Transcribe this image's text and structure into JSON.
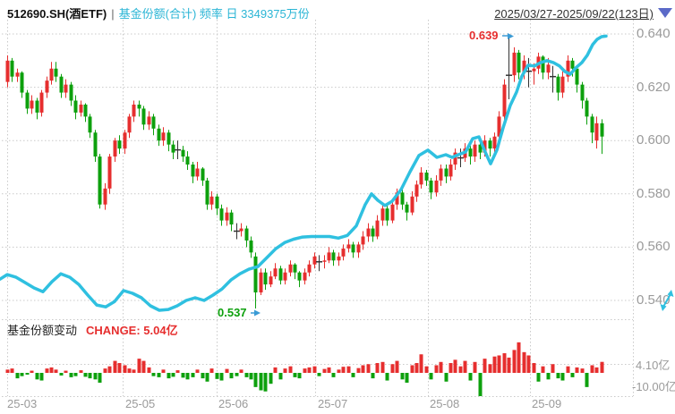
{
  "header": {
    "symbol": "512690.SH(酒ETF)",
    "separator": "|",
    "series_info": "基金份额(合计) 频率 日 3349375万份",
    "date_range": "2025/03/27-2025/09/22(123日)",
    "dropdown_icon": "triangle-down"
  },
  "main_chart": {
    "y_axis_labels": [
      "0.640",
      "0.620",
      "0.600",
      "0.580",
      "0.560",
      "0.540"
    ],
    "high_annotation": "0.639",
    "low_annotation": "0.537",
    "expand_icon": "expand-diagonal"
  },
  "bottom_panel": {
    "title": "基金份额变动",
    "change_text": "CHANGE: 5.04亿",
    "y_axis_labels": [
      "4.10亿",
      "-10.00亿"
    ]
  },
  "x_axis": {
    "labels": [
      "25-03",
      "25-05",
      "25-06",
      "25-07",
      "25-08",
      "25-09"
    ]
  },
  "colors": {
    "up": "#e62e2e",
    "down": "#0da00d",
    "doji": "#333333",
    "line": "#2fc0e0",
    "grid": "#c9c9c9",
    "axis_text": "#9a9a9a",
    "annotation_arrow": "#3a9bd5",
    "header_accent": "#2ab5d5",
    "dropdown": "#5b6ac8"
  },
  "chart_data": [
    {
      "type": "candlestick",
      "title": "512690.SH(酒ETF) 日K",
      "date_range": "2025/03/27-2025/09/22",
      "days": 123,
      "ylim": [
        0.533,
        0.643
      ],
      "y_ticks": [
        0.64,
        0.62,
        0.6,
        0.58,
        0.56,
        0.54
      ],
      "x_tick_labels": [
        "25-03",
        "25-05",
        "25-06",
        "25-07",
        "25-08",
        "25-09"
      ],
      "period_high": 0.639,
      "period_low": 0.537,
      "ohlc": [
        [
          0.622,
          0.632,
          0.62,
          0.63
        ],
        [
          0.63,
          0.631,
          0.622,
          0.624
        ],
        [
          0.624,
          0.627,
          0.622,
          0.6255
        ],
        [
          0.6255,
          0.626,
          0.616,
          0.618
        ],
        [
          0.618,
          0.619,
          0.61,
          0.612
        ],
        [
          0.612,
          0.617,
          0.61,
          0.615
        ],
        [
          0.615,
          0.616,
          0.608,
          0.6105
        ],
        [
          0.6105,
          0.619,
          0.609,
          0.618
        ],
        [
          0.618,
          0.624,
          0.616,
          0.6225
        ],
        [
          0.6225,
          0.6295,
          0.621,
          0.627
        ],
        [
          0.627,
          0.6295,
          0.622,
          0.624
        ],
        [
          0.624,
          0.625,
          0.616,
          0.618
        ],
        [
          0.618,
          0.623,
          0.616,
          0.621
        ],
        [
          0.621,
          0.622,
          0.613,
          0.615
        ],
        [
          0.615,
          0.617,
          0.608,
          0.6105
        ],
        [
          0.6105,
          0.615,
          0.609,
          0.6135
        ],
        [
          0.6135,
          0.614,
          0.607,
          0.609
        ],
        [
          0.609,
          0.61,
          0.601,
          0.603
        ],
        [
          0.603,
          0.604,
          0.592,
          0.594
        ],
        [
          0.594,
          0.595,
          0.5745,
          0.576
        ],
        [
          0.576,
          0.584,
          0.574,
          0.582
        ],
        [
          0.582,
          0.595,
          0.58,
          0.594
        ],
        [
          0.594,
          0.601,
          0.592,
          0.6
        ],
        [
          0.6,
          0.602,
          0.595,
          0.597
        ],
        [
          0.597,
          0.604,
          0.595,
          0.603
        ],
        [
          0.603,
          0.61,
          0.601,
          0.609
        ],
        [
          0.609,
          0.615,
          0.607,
          0.6135
        ],
        [
          0.6135,
          0.615,
          0.609,
          0.612
        ],
        [
          0.612,
          0.613,
          0.604,
          0.606
        ],
        [
          0.606,
          0.611,
          0.604,
          0.609
        ],
        [
          0.609,
          0.61,
          0.602,
          0.6045
        ],
        [
          0.6045,
          0.606,
          0.598,
          0.6
        ],
        [
          0.6,
          0.605,
          0.598,
          0.603
        ],
        [
          0.603,
          0.604,
          0.596,
          0.5985
        ],
        [
          0.5985,
          0.6,
          0.593,
          0.5955
        ],
        [
          0.5965,
          0.6,
          0.593,
          0.5965
        ],
        [
          0.5965,
          0.598,
          0.592,
          0.594
        ],
        [
          0.594,
          0.596,
          0.589,
          0.591
        ],
        [
          0.591,
          0.592,
          0.584,
          0.5865
        ],
        [
          0.5865,
          0.592,
          0.585,
          0.5895
        ],
        [
          0.5895,
          0.59,
          0.583,
          0.585
        ],
        [
          0.585,
          0.586,
          0.574,
          0.576
        ],
        [
          0.576,
          0.581,
          0.574,
          0.579
        ],
        [
          0.579,
          0.58,
          0.572,
          0.5745
        ],
        [
          0.5745,
          0.576,
          0.568,
          0.57
        ],
        [
          0.57,
          0.575,
          0.568,
          0.573
        ],
        [
          0.573,
          0.574,
          0.566,
          0.5685
        ],
        [
          0.566,
          0.569,
          0.563,
          0.566
        ],
        [
          0.566,
          0.569,
          0.564,
          0.567
        ],
        [
          0.567,
          0.568,
          0.56,
          0.5625
        ],
        [
          0.5625,
          0.564,
          0.556,
          0.558
        ],
        [
          0.5565,
          0.558,
          0.537,
          0.543
        ],
        [
          0.543,
          0.552,
          0.542,
          0.5505
        ],
        [
          0.5505,
          0.552,
          0.544,
          0.546
        ],
        [
          0.546,
          0.551,
          0.545,
          0.549
        ],
        [
          0.549,
          0.554,
          0.548,
          0.552
        ],
        [
          0.552,
          0.553,
          0.546,
          0.5475
        ],
        [
          0.5475,
          0.552,
          0.546,
          0.5505
        ],
        [
          0.5505,
          0.555,
          0.549,
          0.5535
        ],
        [
          0.5535,
          0.554,
          0.548,
          0.5505
        ],
        [
          0.5505,
          0.551,
          0.545,
          0.5475
        ],
        [
          0.5475,
          0.552,
          0.546,
          0.5505
        ],
        [
          0.5505,
          0.555,
          0.549,
          0.5535
        ],
        [
          0.5535,
          0.558,
          0.552,
          0.5565
        ],
        [
          0.5545,
          0.557,
          0.551,
          0.5545
        ],
        [
          0.5545,
          0.557,
          0.552,
          0.555
        ],
        [
          0.555,
          0.56,
          0.554,
          0.558
        ],
        [
          0.558,
          0.559,
          0.553,
          0.555
        ],
        [
          0.555,
          0.558,
          0.553,
          0.5565
        ],
        [
          0.5565,
          0.561,
          0.555,
          0.5595
        ],
        [
          0.5595,
          0.563,
          0.558,
          0.561
        ],
        [
          0.561,
          0.562,
          0.556,
          0.558
        ],
        [
          0.558,
          0.562,
          0.556,
          0.561
        ],
        [
          0.561,
          0.566,
          0.559,
          0.564
        ],
        [
          0.564,
          0.569,
          0.562,
          0.567
        ],
        [
          0.567,
          0.568,
          0.562,
          0.564
        ],
        [
          0.564,
          0.572,
          0.563,
          0.57
        ],
        [
          0.57,
          0.576,
          0.568,
          0.5745
        ],
        [
          0.5745,
          0.576,
          0.568,
          0.57
        ],
        [
          0.57,
          0.578,
          0.569,
          0.576
        ],
        [
          0.576,
          0.582,
          0.574,
          0.5805
        ],
        [
          0.5805,
          0.582,
          0.574,
          0.576
        ],
        [
          0.576,
          0.577,
          0.57,
          0.573
        ],
        [
          0.573,
          0.581,
          0.572,
          0.579
        ],
        [
          0.579,
          0.585,
          0.577,
          0.5835
        ],
        [
          0.5835,
          0.59,
          0.582,
          0.588
        ],
        [
          0.588,
          0.589,
          0.583,
          0.585
        ],
        [
          0.585,
          0.586,
          0.578,
          0.5805
        ],
        [
          0.5805,
          0.587,
          0.579,
          0.585
        ],
        [
          0.585,
          0.591,
          0.583,
          0.5895
        ],
        [
          0.5895,
          0.591,
          0.584,
          0.5865
        ],
        [
          0.5865,
          0.593,
          0.585,
          0.591
        ],
        [
          0.591,
          0.597,
          0.589,
          0.5955
        ],
        [
          0.5935,
          0.597,
          0.59,
          0.5935
        ],
        [
          0.5935,
          0.599,
          0.592,
          0.597
        ],
        [
          0.597,
          0.598,
          0.591,
          0.594
        ],
        [
          0.594,
          0.6,
          0.592,
          0.5985
        ],
        [
          0.5985,
          0.6,
          0.593,
          0.5955
        ],
        [
          0.5955,
          0.602,
          0.594,
          0.6
        ],
        [
          0.6,
          0.601,
          0.594,
          0.597
        ],
        [
          0.597,
          0.603,
          0.595,
          0.6015
        ],
        [
          0.6015,
          0.611,
          0.6,
          0.609
        ],
        [
          0.609,
          0.623,
          0.607,
          0.621
        ],
        [
          0.6245,
          0.639,
          0.6155,
          0.6245
        ],
        [
          0.6245,
          0.635,
          0.622,
          0.633
        ],
        [
          0.633,
          0.634,
          0.623,
          0.6255
        ],
        [
          0.6255,
          0.632,
          0.623,
          0.63
        ],
        [
          0.626,
          0.631,
          0.62,
          0.626
        ],
        [
          0.626,
          0.629,
          0.621,
          0.627
        ],
        [
          0.627,
          0.633,
          0.625,
          0.6315
        ],
        [
          0.6315,
          0.632,
          0.623,
          0.6255
        ],
        [
          0.6255,
          0.631,
          0.623,
          0.6285
        ],
        [
          0.624,
          0.628,
          0.618,
          0.624
        ],
        [
          0.624,
          0.625,
          0.615,
          0.618
        ],
        [
          0.618,
          0.626,
          0.616,
          0.624
        ],
        [
          0.624,
          0.632,
          0.622,
          0.63
        ],
        [
          0.63,
          0.631,
          0.624,
          0.627
        ],
        [
          0.627,
          0.628,
          0.618,
          0.621
        ],
        [
          0.621,
          0.622,
          0.612,
          0.615
        ],
        [
          0.615,
          0.616,
          0.606,
          0.609
        ],
        [
          0.609,
          0.61,
          0.599,
          0.603
        ],
        [
          0.6,
          0.609,
          0.597,
          0.6065
        ],
        [
          0.6065,
          0.608,
          0.595,
          0.6015
        ]
      ]
    },
    {
      "type": "line",
      "name": "基金份额(合计)",
      "latest_value_label": "3349375万份",
      "note": "values expressed on the price-axis scale as plotted",
      "points": [
        [
          0,
          0.548
        ],
        [
          8,
          0.5497
        ],
        [
          18,
          0.5487
        ],
        [
          28,
          0.5467
        ],
        [
          38,
          0.5447
        ],
        [
          48,
          0.5433
        ],
        [
          58,
          0.547
        ],
        [
          68,
          0.55
        ],
        [
          78,
          0.5487
        ],
        [
          88,
          0.546
        ],
        [
          98,
          0.542
        ],
        [
          108,
          0.5383
        ],
        [
          118,
          0.5376
        ],
        [
          128,
          0.5396
        ],
        [
          138,
          0.5437
        ],
        [
          148,
          0.5427
        ],
        [
          158,
          0.541
        ],
        [
          168,
          0.538
        ],
        [
          178,
          0.5363
        ],
        [
          188,
          0.5366
        ],
        [
          198,
          0.538
        ],
        [
          208,
          0.54
        ],
        [
          218,
          0.541
        ],
        [
          228,
          0.54
        ],
        [
          238,
          0.542
        ],
        [
          248,
          0.5443
        ],
        [
          258,
          0.5477
        ],
        [
          268,
          0.55
        ],
        [
          278,
          0.5517
        ],
        [
          288,
          0.5527
        ],
        [
          298,
          0.556
        ],
        [
          308,
          0.5594
        ],
        [
          318,
          0.5617
        ],
        [
          328,
          0.563
        ],
        [
          338,
          0.5638
        ],
        [
          348,
          0.564
        ],
        [
          358,
          0.564
        ],
        [
          368,
          0.564
        ],
        [
          378,
          0.5634
        ],
        [
          388,
          0.5644
        ],
        [
          398,
          0.568
        ],
        [
          408,
          0.576
        ],
        [
          415,
          0.58
        ],
        [
          422,
          0.5776
        ],
        [
          430,
          0.5756
        ],
        [
          438,
          0.5772
        ],
        [
          448,
          0.5816
        ],
        [
          458,
          0.5883
        ],
        [
          468,
          0.5944
        ],
        [
          478,
          0.5964
        ],
        [
          488,
          0.5937
        ],
        [
          498,
          0.5947
        ],
        [
          505,
          0.5937
        ],
        [
          512,
          0.5947
        ],
        [
          520,
          0.5957
        ],
        [
          528,
          0.6007
        ],
        [
          535,
          0.6014
        ],
        [
          542,
          0.5957
        ],
        [
          548,
          0.5913
        ],
        [
          555,
          0.5964
        ],
        [
          562,
          0.6048
        ],
        [
          570,
          0.6132
        ],
        [
          577,
          0.6182
        ],
        [
          583,
          0.6242
        ],
        [
          590,
          0.6283
        ],
        [
          597,
          0.628
        ],
        [
          604,
          0.6293
        ],
        [
          611,
          0.63
        ],
        [
          618,
          0.6293
        ],
        [
          625,
          0.628
        ],
        [
          631,
          0.6259
        ],
        [
          637,
          0.6249
        ],
        [
          643,
          0.6272
        ],
        [
          650,
          0.6293
        ],
        [
          656,
          0.632
        ],
        [
          662,
          0.636
        ],
        [
          667,
          0.638
        ],
        [
          672,
          0.639
        ],
        [
          677,
          0.6392
        ]
      ]
    },
    {
      "type": "bar",
      "name": "基金份额变动",
      "unit": "亿份",
      "y_tick_labels": [
        "4.10亿",
        "-10.00亿"
      ],
      "last_change": 5.04,
      "values": [
        1.5,
        2.0,
        -2.5,
        -1.5,
        -0.8,
        1.0,
        -3.0,
        -3.5,
        2.0,
        2.5,
        1.5,
        -1.2,
        1.0,
        -2.0,
        -1.5,
        1.2,
        -1.8,
        -2.5,
        -3.0,
        -4.5,
        2.0,
        3.0,
        5.5,
        4.5,
        3.5,
        2.0,
        1.5,
        6.5,
        5.5,
        2.5,
        -1.5,
        -2.0,
        1.5,
        -2.5,
        -1.8,
        1.2,
        -2.2,
        -3.0,
        -2.0,
        1.5,
        -2.5,
        -4.0,
        2.0,
        -2.8,
        -3.5,
        1.8,
        -2.5,
        -1.5,
        1.5,
        -2.0,
        -3.0,
        -6.5,
        -8.0,
        -8.5,
        -5.0,
        2.5,
        -3.0,
        2.0,
        3.0,
        -2.0,
        -2.5,
        2.0,
        2.5,
        3.0,
        -1.5,
        1.8,
        2.5,
        -2.0,
        1.5,
        2.8,
        3.0,
        -2.0,
        2.2,
        3.5,
        4.0,
        -2.5,
        4.5,
        5.0,
        -3.5,
        4.0,
        5.5,
        -3.0,
        -4.5,
        3.5,
        4.5,
        8.5,
        3.0,
        -3.0,
        3.5,
        5.0,
        -4.0,
        4.5,
        6.0,
        3.0,
        5.5,
        -3.5,
        5.0,
        -11.0,
        6.5,
        4.0,
        7.5,
        8.0,
        9.0,
        7.0,
        10.5,
        14.0,
        9.5,
        8.0,
        4.5,
        -4.0,
        3.0,
        -3.0,
        4.0,
        -2.5,
        -3.5,
        3.0,
        -2.0,
        2.5,
        2.0,
        -6.5,
        3.5,
        2.5,
        5.04
      ]
    }
  ]
}
